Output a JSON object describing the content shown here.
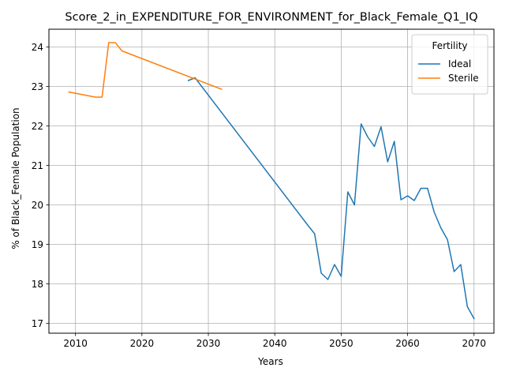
{
  "chart_data": {
    "type": "line",
    "title": "Score_2_in_EXPENDITURE_FOR_ENVIRONMENT_for_Black_Female_Q1_IQ",
    "xlabel": "Years",
    "ylabel": "% of Black_Female Population",
    "xlim": [
      2006,
      2073
    ],
    "ylim": [
      16.75,
      24.45
    ],
    "xticks": [
      2010,
      2020,
      2030,
      2040,
      2050,
      2060,
      2070
    ],
    "yticks": [
      17,
      18,
      19,
      20,
      21,
      22,
      23,
      24
    ],
    "grid": true,
    "legend": {
      "title": "Fertility",
      "placement": "top-right"
    },
    "series": [
      {
        "name": "Ideal",
        "color": "#1f77b4",
        "points": [
          [
            2027,
            23.15
          ],
          [
            2028,
            23.22
          ],
          [
            2045,
            19.48
          ],
          [
            2046,
            19.27
          ],
          [
            2047,
            18.27
          ],
          [
            2048,
            18.11
          ],
          [
            2049,
            18.49
          ],
          [
            2050,
            18.19
          ],
          [
            2051,
            20.33
          ],
          [
            2052,
            20.0
          ],
          [
            2053,
            22.05
          ],
          [
            2054,
            21.72
          ],
          [
            2055,
            21.48
          ],
          [
            2056,
            21.98
          ],
          [
            2057,
            21.09
          ],
          [
            2058,
            21.61
          ],
          [
            2059,
            20.13
          ],
          [
            2060,
            20.23
          ],
          [
            2061,
            20.11
          ],
          [
            2062,
            20.42
          ],
          [
            2063,
            20.42
          ],
          [
            2064,
            19.82
          ],
          [
            2065,
            19.42
          ],
          [
            2066,
            19.12
          ],
          [
            2067,
            18.31
          ],
          [
            2068,
            18.49
          ],
          [
            2069,
            17.42
          ],
          [
            2070,
            17.12
          ]
        ]
      },
      {
        "name": "Sterile",
        "color": "#ff7f0e",
        "points": [
          [
            2009,
            22.86
          ],
          [
            2013,
            22.73
          ],
          [
            2014,
            22.73
          ],
          [
            2015,
            24.11
          ],
          [
            2016,
            24.11
          ],
          [
            2017,
            23.9
          ],
          [
            2032,
            22.93
          ]
        ]
      }
    ]
  }
}
